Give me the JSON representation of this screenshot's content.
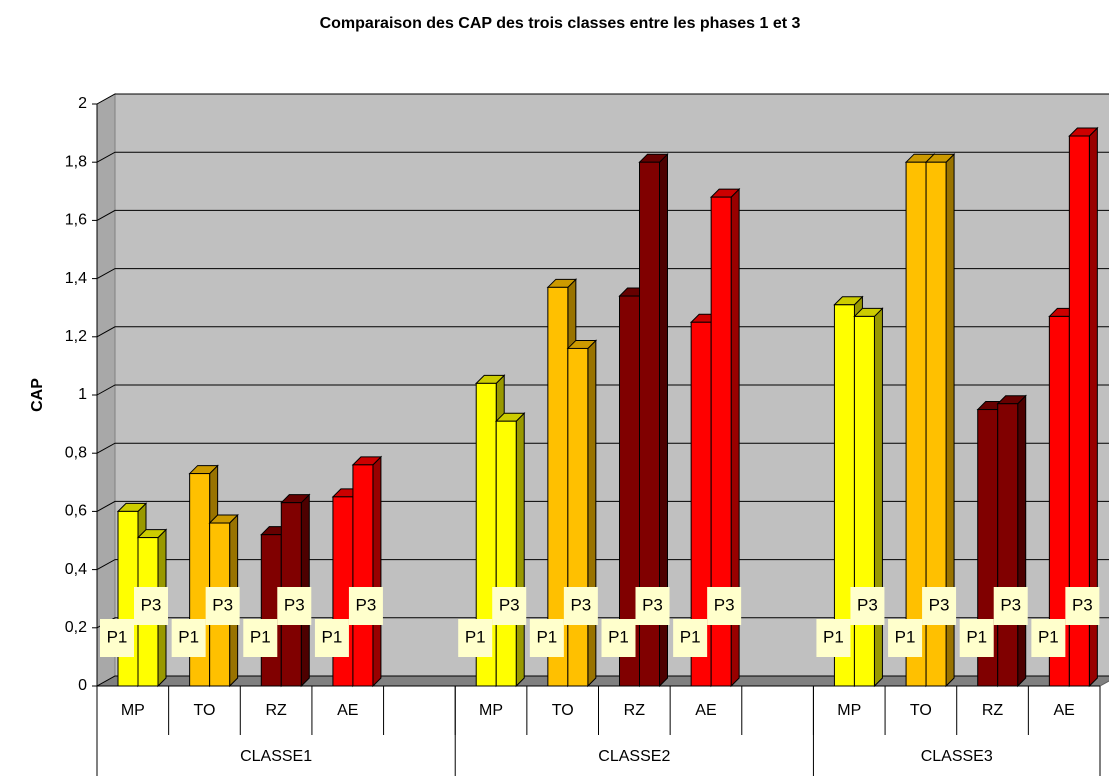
{
  "chart_data": {
    "type": "bar3d",
    "title": "Comparaison des CAP des trois classes entre les phases 1 et 3",
    "y_label": "CAP",
    "categories": [
      "MP",
      "TO",
      "RZ",
      "AE",
      null,
      "MP",
      "TO",
      "RZ",
      "AE",
      null,
      "MP",
      "TO",
      "RZ",
      "AE"
    ],
    "groups": [
      "CLASSE1",
      "CLASSE2",
      "CLASSE3"
    ],
    "category_colors": {
      "MP": "#ffff00",
      "TO": "#ffc000",
      "RZ": "#800000",
      "AE": "#ff0000"
    },
    "series": [
      {
        "name": "P1",
        "values": [
          0.6,
          0.73,
          0.52,
          0.65,
          null,
          1.04,
          1.37,
          1.34,
          1.25,
          null,
          1.31,
          1.8,
          0.95,
          1.27
        ]
      },
      {
        "name": "P3",
        "values": [
          0.51,
          0.56,
          0.63,
          0.76,
          null,
          0.91,
          1.16,
          1.8,
          1.68,
          null,
          1.27,
          1.8,
          0.97,
          1.89
        ]
      }
    ],
    "ylim": [
      0,
      2
    ],
    "yticks": [
      0,
      {
        "value": 0.2,
        "label": "0,2"
      },
      {
        "value": 0.4,
        "label": "0,4"
      },
      {
        "value": 0.6,
        "label": "0,6"
      },
      {
        "value": 0.8,
        "label": "0,8"
      },
      1,
      {
        "value": 1.2,
        "label": "1,2"
      },
      {
        "value": 1.4,
        "label": "1,4"
      },
      {
        "value": 1.6,
        "label": "1,6"
      },
      {
        "value": 1.8,
        "label": "1,8"
      },
      2
    ],
    "grid": true
  }
}
